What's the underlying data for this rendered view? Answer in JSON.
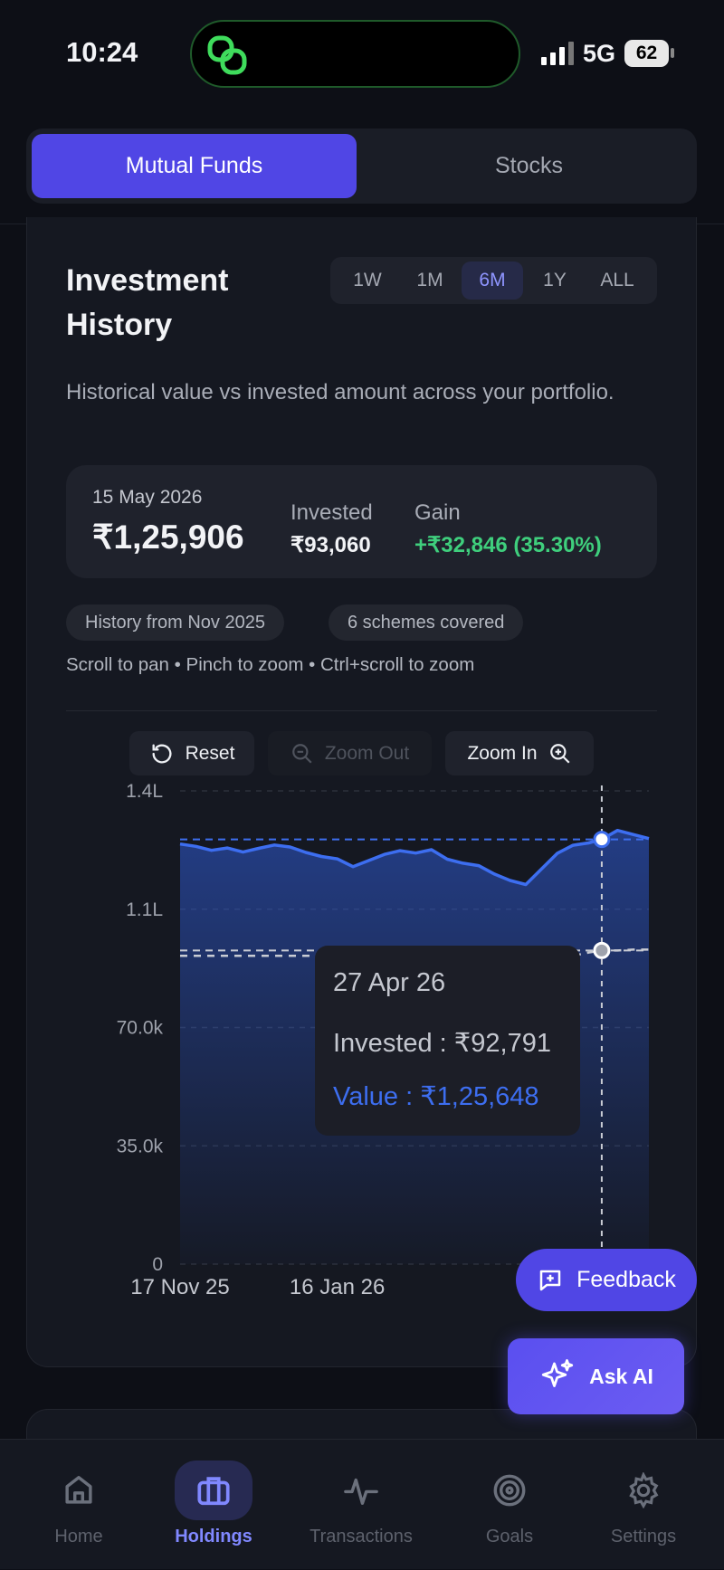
{
  "status_bar": {
    "time": "10:24",
    "network": "5G",
    "battery": "62"
  },
  "tabs": {
    "items": [
      "Mutual Funds",
      "Stocks"
    ],
    "active": 0
  },
  "card": {
    "title": "Investment History",
    "ranges": {
      "items": [
        "1W",
        "1M",
        "6M",
        "1Y",
        "ALL"
      ],
      "active": 2
    },
    "subtitle": "Historical value vs invested amount across your portfolio.",
    "summary": {
      "date": "15 May 2026",
      "value": "₹1,25,906",
      "invested_label": "Invested",
      "invested": "₹93,060",
      "gain_label": "Gain",
      "gain": "+₹32,846 (35.30%)"
    },
    "chips": [
      "History from Nov 2025",
      "6 schemes covered"
    ],
    "hint": "Scroll to pan • Pinch to zoom • Ctrl+scroll to zoom",
    "controls": [
      "Reset",
      "Zoom Out",
      "Zoom In"
    ]
  },
  "chart_data": {
    "type": "area",
    "x": [
      "2025-11-17",
      "2025-11-23",
      "2025-11-29",
      "2025-12-05",
      "2025-12-11",
      "2025-12-17",
      "2025-12-23",
      "2025-12-29",
      "2026-01-04",
      "2026-01-10",
      "2026-01-16",
      "2026-01-22",
      "2026-01-28",
      "2026-02-03",
      "2026-02-09",
      "2026-02-15",
      "2026-02-21",
      "2026-02-27",
      "2026-03-05",
      "2026-03-11",
      "2026-03-17",
      "2026-03-23",
      "2026-03-29",
      "2026-04-04",
      "2026-04-10",
      "2026-04-16",
      "2026-04-22",
      "2026-04-27",
      "2026-05-03",
      "2026-05-09",
      "2026-05-15"
    ],
    "series": [
      {
        "color": "#3d6ef0",
        "fill": true,
        "dashed": false,
        "values": [
          124300,
          123600,
          122400,
          123100,
          121900,
          123000,
          124000,
          123400,
          121800,
          120600,
          119900,
          117600,
          119400,
          121200,
          122300,
          121600,
          122600,
          119800,
          118600,
          117900,
          115400,
          113500,
          112300,
          116900,
          121500,
          123900,
          124600,
          125648,
          128300,
          127100,
          125906
        ]
      },
      {
        "color": "#c9ccd4",
        "fill": false,
        "dashed": true,
        "values": [
          91200,
          91200,
          91200,
          91200,
          91200,
          91200,
          91200,
          91200,
          91200,
          91200,
          91200,
          91200,
          91200,
          91200,
          91200,
          91200,
          91200,
          91200,
          91200,
          91200,
          91200,
          91200,
          91200,
          91200,
          91200,
          91200,
          92200,
          92791,
          92791,
          93060,
          93060
        ]
      }
    ],
    "xlim": [
      "2025-11-17",
      "2026-05-15"
    ],
    "xticks": [
      {
        "value": "2025-11-17",
        "label": "17 Nov 25"
      },
      {
        "value": "2026-01-16",
        "label": "16 Jan 26"
      }
    ],
    "ylim": [
      0,
      140000
    ],
    "yticks": [
      0,
      {
        "value": 35000,
        "label": "35.0k"
      },
      {
        "value": 70000,
        "label": "70.0k"
      },
      {
        "value": 105000,
        "label": "1.1L"
      },
      {
        "value": 140000,
        "label": "1.4L"
      }
    ],
    "grid": true,
    "tooltip": {
      "x": "2026-04-27",
      "date": "27 Apr 26",
      "invested": "Invested : ₹92,791",
      "value": "Value : ₹1,25,648"
    }
  },
  "fabs": [
    "Feedback",
    "Ask AI"
  ],
  "nav": {
    "items": [
      "Home",
      "Holdings",
      "Transactions",
      "Goals",
      "Settings"
    ],
    "active": 1
  }
}
